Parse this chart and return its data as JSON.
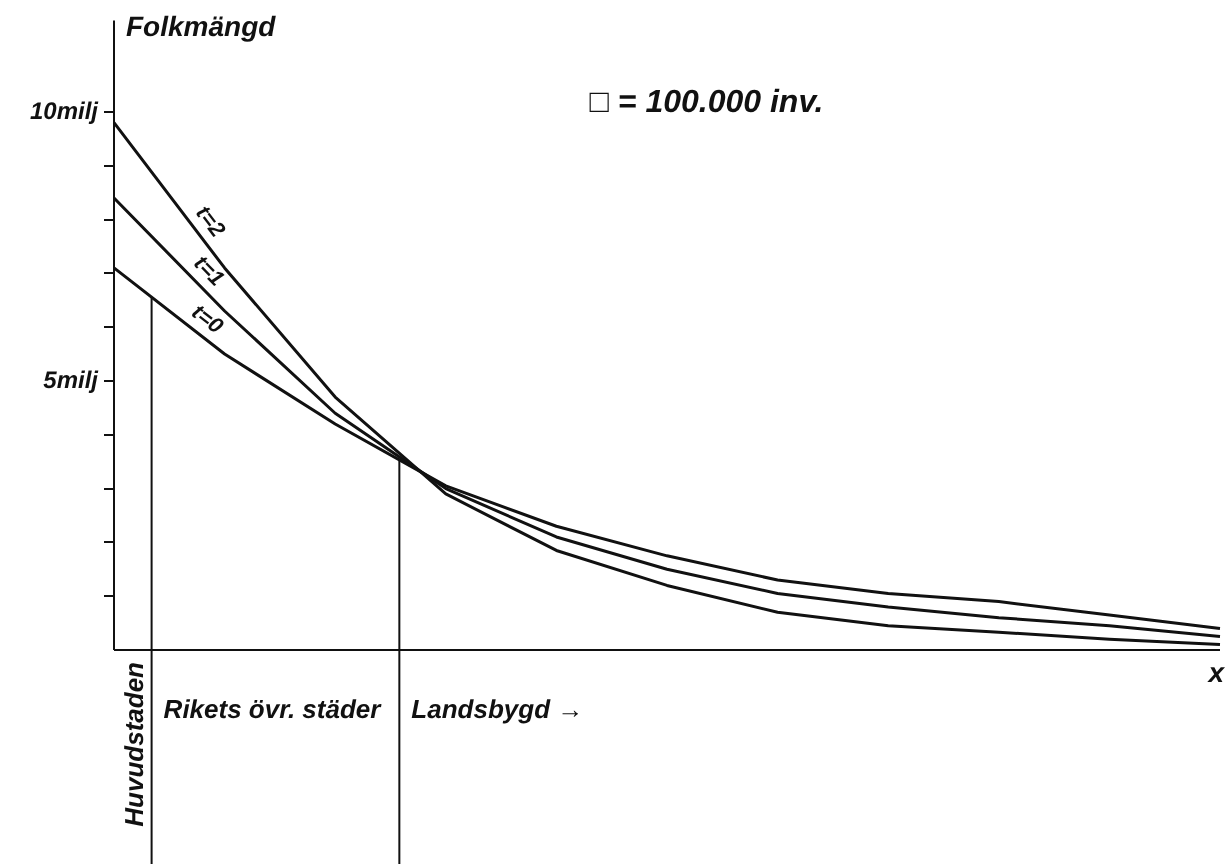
{
  "chart_data": {
    "type": "line",
    "ylabel": "Folkmängd",
    "xlabel": "x",
    "categories": [
      null,
      null,
      null,
      null,
      null,
      null,
      null,
      null,
      null,
      null,
      null
    ],
    "series": [
      {
        "name": "t=2",
        "color": "#111111",
        "values": [
          9.8,
          7.1,
          4.7,
          2.9,
          1.85,
          1.2,
          0.7,
          0.45,
          0.33,
          0.2,
          0.1
        ]
      },
      {
        "name": "t=1",
        "color": "#111111",
        "values": [
          8.4,
          6.3,
          4.4,
          3.0,
          2.1,
          1.5,
          1.05,
          0.8,
          0.6,
          0.45,
          0.25
        ]
      },
      {
        "name": "t=0",
        "color": "#111111",
        "values": [
          7.1,
          5.5,
          4.2,
          3.05,
          2.3,
          1.75,
          1.3,
          1.05,
          0.9,
          0.65,
          0.4
        ]
      }
    ],
    "ylim": [
      0,
      11.7
    ],
    "yticks": [
      {
        "value": 1,
        "label": null
      },
      {
        "value": 2,
        "label": null
      },
      {
        "value": 3,
        "label": null
      },
      {
        "value": 4,
        "label": null
      },
      {
        "value": 5,
        "label": "5milj"
      },
      {
        "value": 6,
        "label": null
      },
      {
        "value": 7,
        "label": null
      },
      {
        "value": 8,
        "label": null
      },
      {
        "value": 9,
        "label": null
      },
      {
        "value": 10,
        "label": "10milj"
      }
    ],
    "tick_labels": "y",
    "annotations": [
      "□ = 100.000 inv.",
      "Huvudstaden",
      "Rikets övr. städer",
      "Landsbygd →"
    ],
    "legend": false,
    "grid": false,
    "marker": "none",
    "line_style": "solid"
  }
}
